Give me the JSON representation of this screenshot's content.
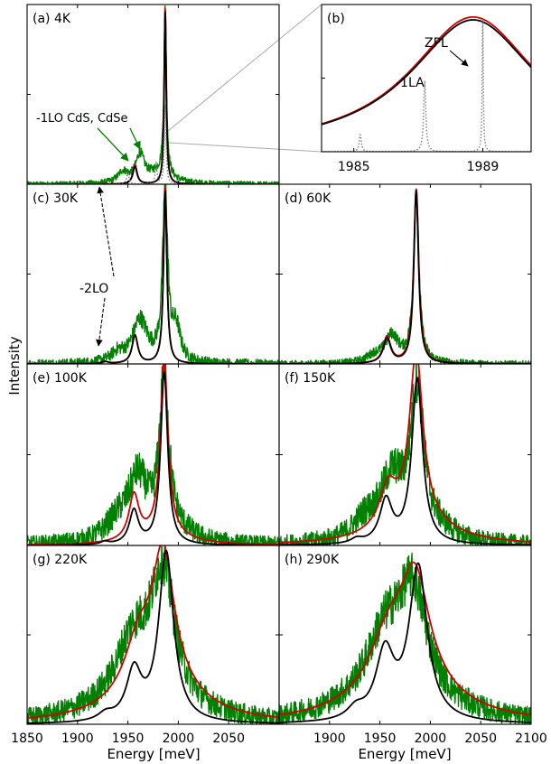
{
  "figure": {
    "ylabel": "Intensity",
    "xlabel_left": "Energy [meV]",
    "xlabel_right": "Energy [meV]"
  },
  "chart_data": [
    {
      "id": "a",
      "type": "line",
      "title": "(a)  4K",
      "xlim": [
        1850,
        2100
      ],
      "ylim": [
        0,
        1
      ],
      "annotations": [
        {
          "text": "-1LO CdS, CdSe"
        }
      ],
      "series": [
        {
          "color": "#d40000",
          "peaks": [
            {
              "x": 1987,
              "amp": 1.0,
              "w": 1.2
            },
            {
              "x": 1957,
              "amp": 0.11,
              "w": 2.5
            }
          ]
        },
        {
          "color": "#000000",
          "peaks": [
            {
              "x": 1987,
              "amp": 0.98,
              "w": 1.2
            },
            {
              "x": 1957,
              "amp": 0.1,
              "w": 2.5
            }
          ]
        },
        {
          "color": "#808080",
          "dotted": true,
          "peaks": [
            {
              "x": 1987,
              "amp": 0.45,
              "w": 1.0
            },
            {
              "x": 1978,
              "amp": 0.12,
              "w": 1.0
            },
            {
              "x": 1950,
              "amp": 0.06,
              "w": 1.5
            }
          ]
        },
        {
          "color": "#008000",
          "noise": 0.012,
          "peaks": [
            {
              "x": 1987,
              "amp": 0.96,
              "w": 1.5
            },
            {
              "x": 1962,
              "amp": 0.15,
              "w": 5
            },
            {
              "x": 1945,
              "amp": 0.06,
              "w": 6
            },
            {
              "x": 1980,
              "amp": 0.06,
              "w": 15
            }
          ]
        }
      ]
    },
    {
      "id": "b",
      "type": "line",
      "title": "(b)",
      "xlim": [
        1984,
        1990.5
      ],
      "ylim": [
        0,
        1
      ],
      "xticks": [
        1985,
        1989
      ],
      "annotations": [
        {
          "text": "ZPL"
        },
        {
          "text": "-1LA"
        }
      ],
      "series": [
        {
          "color": "#d40000",
          "peaks": [
            {
              "x": 1988.7,
              "amp": 0.95,
              "w": 2.4
            }
          ]
        },
        {
          "color": "#000000",
          "peaks": [
            {
              "x": 1988.7,
              "amp": 0.93,
              "w": 2.4
            }
          ]
        },
        {
          "color": "#808080",
          "dotted": true,
          "peaks": [
            {
              "x": 1989.0,
              "amp": 0.95,
              "w": 0.02
            },
            {
              "x": 1987.2,
              "amp": 0.5,
              "w": 0.04
            },
            {
              "x": 1985.2,
              "amp": 0.12,
              "w": 0.04
            }
          ]
        }
      ]
    },
    {
      "id": "c",
      "type": "line",
      "title": "(c)  30K",
      "xlim": [
        1850,
        2100
      ],
      "ylim": [
        0,
        1
      ],
      "annotations": [
        {
          "text": "-2LO"
        }
      ],
      "series": [
        {
          "color": "#d40000",
          "peaks": [
            {
              "x": 1987,
              "amp": 1.0,
              "w": 2.0
            },
            {
              "x": 1957,
              "amp": 0.16,
              "w": 3.5
            },
            {
              "x": 1927,
              "amp": 0.012,
              "w": 4
            }
          ]
        },
        {
          "color": "#000000",
          "peaks": [
            {
              "x": 1987,
              "amp": 0.98,
              "w": 2.0
            },
            {
              "x": 1957,
              "amp": 0.16,
              "w": 3.5
            },
            {
              "x": 1927,
              "amp": 0.012,
              "w": 4
            }
          ]
        },
        {
          "color": "#008000",
          "noise": 0.02,
          "peaks": [
            {
              "x": 1987,
              "amp": 0.98,
              "w": 3.0
            },
            {
              "x": 1962,
              "amp": 0.24,
              "w": 9
            },
            {
              "x": 1998,
              "amp": 0.18,
              "w": 5
            },
            {
              "x": 1940,
              "amp": 0.05,
              "w": 8
            }
          ]
        }
      ]
    },
    {
      "id": "d",
      "type": "line",
      "title": "(d)  60K",
      "xlim": [
        1850,
        2100
      ],
      "ylim": [
        0,
        1
      ],
      "series": [
        {
          "color": "#d40000",
          "peaks": [
            {
              "x": 1986,
              "amp": 0.99,
              "w": 3.0
            },
            {
              "x": 1957,
              "amp": 0.15,
              "w": 4.5
            }
          ]
        },
        {
          "color": "#000000",
          "peaks": [
            {
              "x": 1986,
              "amp": 0.98,
              "w": 2.8
            },
            {
              "x": 1957,
              "amp": 0.14,
              "w": 4.5
            }
          ]
        },
        {
          "color": "#008000",
          "noise": 0.015,
          "peaks": [
            {
              "x": 1986,
              "amp": 0.97,
              "w": 3.2
            },
            {
              "x": 1962,
              "amp": 0.15,
              "w": 8
            },
            {
              "x": 1945,
              "amp": 0.04,
              "w": 10
            }
          ]
        }
      ]
    },
    {
      "id": "e",
      "type": "line",
      "title": "(e)  100K",
      "xlim": [
        1850,
        2100
      ],
      "ylim": [
        0,
        1
      ],
      "series": [
        {
          "color": "#d40000",
          "peaks": [
            {
              "x": 1986,
              "amp": 0.98,
              "w": 4.5
            },
            {
              "x": 1956,
              "amp": 0.25,
              "w": 6
            },
            {
              "x": 1985,
              "amp": 0.06,
              "w": 28
            }
          ]
        },
        {
          "color": "#000000",
          "peaks": [
            {
              "x": 1986,
              "amp": 0.97,
              "w": 4.2
            },
            {
              "x": 1956,
              "amp": 0.19,
              "w": 5.5
            },
            {
              "x": 1927,
              "amp": 0.015,
              "w": 5
            }
          ]
        },
        {
          "color": "#008000",
          "noise": 0.035,
          "peaks": [
            {
              "x": 1986,
              "amp": 0.9,
              "w": 5.5
            },
            {
              "x": 1960,
              "amp": 0.34,
              "w": 12
            },
            {
              "x": 1940,
              "amp": 0.1,
              "w": 15
            },
            {
              "x": 2000,
              "amp": 0.05,
              "w": 20
            }
          ]
        }
      ]
    },
    {
      "id": "f",
      "type": "line",
      "title": "(f)  150K",
      "xlim": [
        1850,
        2100
      ],
      "ylim": [
        0,
        1
      ],
      "series": [
        {
          "color": "#d40000",
          "peaks": [
            {
              "x": 1986,
              "amp": 0.93,
              "w": 8
            },
            {
              "x": 1958,
              "amp": 0.22,
              "w": 10
            },
            {
              "x": 1985,
              "amp": 0.14,
              "w": 40
            }
          ]
        },
        {
          "color": "#000000",
          "peaks": [
            {
              "x": 1987,
              "amp": 0.93,
              "w": 6.5
            },
            {
              "x": 1956,
              "amp": 0.24,
              "w": 7.5
            },
            {
              "x": 1927,
              "amp": 0.025,
              "w": 7
            }
          ]
        },
        {
          "color": "#008000",
          "noise": 0.035,
          "peaks": [
            {
              "x": 1987,
              "amp": 0.82,
              "w": 8
            },
            {
              "x": 1962,
              "amp": 0.34,
              "w": 15
            },
            {
              "x": 1935,
              "amp": 0.1,
              "w": 15
            },
            {
              "x": 2010,
              "amp": 0.05,
              "w": 20
            }
          ]
        }
      ]
    },
    {
      "id": "g",
      "type": "line",
      "title": "(g)  220K",
      "xlim": [
        1850,
        2100
      ],
      "ylim": [
        0,
        1
      ],
      "series": [
        {
          "color": "#d40000",
          "peaks": [
            {
              "x": 1985,
              "amp": 0.72,
              "w": 13
            },
            {
              "x": 1960,
              "amp": 0.25,
              "w": 16
            },
            {
              "x": 1980,
              "amp": 0.25,
              "w": 42
            }
          ]
        },
        {
          "color": "#000000",
          "peaks": [
            {
              "x": 1988,
              "amp": 0.97,
              "w": 9
            },
            {
              "x": 1956,
              "amp": 0.28,
              "w": 9
            },
            {
              "x": 1928,
              "amp": 0.04,
              "w": 9
            }
          ]
        },
        {
          "color": "#008000",
          "noise": 0.035,
          "peaks": [
            {
              "x": 1985,
              "amp": 0.7,
              "w": 14
            },
            {
              "x": 1955,
              "amp": 0.3,
              "w": 20
            },
            {
              "x": 1965,
              "amp": 0.17,
              "w": 45
            }
          ]
        }
      ]
    },
    {
      "id": "h",
      "type": "line",
      "title": "(h)  290K",
      "xlim": [
        1850,
        2100
      ],
      "ylim": [
        0,
        1
      ],
      "series": [
        {
          "color": "#d40000",
          "peaks": [
            {
              "x": 1985,
              "amp": 0.55,
              "w": 17
            },
            {
              "x": 1958,
              "amp": 0.25,
              "w": 22
            },
            {
              "x": 1975,
              "amp": 0.28,
              "w": 48
            }
          ]
        },
        {
          "color": "#000000",
          "peaks": [
            {
              "x": 1988,
              "amp": 0.88,
              "w": 11
            },
            {
              "x": 1955,
              "amp": 0.38,
              "w": 11
            },
            {
              "x": 1926,
              "amp": 0.06,
              "w": 10
            }
          ]
        },
        {
          "color": "#008000",
          "noise": 0.035,
          "peaks": [
            {
              "x": 1983,
              "amp": 0.55,
              "w": 17
            },
            {
              "x": 1955,
              "amp": 0.3,
              "w": 22
            },
            {
              "x": 1965,
              "amp": 0.2,
              "w": 50
            }
          ]
        }
      ]
    }
  ],
  "axes": {
    "left_ticks": [
      "1850",
      "1900",
      "1950",
      "2000",
      "2050"
    ],
    "left_tick_values": [
      1850,
      1900,
      1950,
      2000,
      2050
    ],
    "right_ticks": [
      "1900",
      "1950",
      "2000",
      "2050",
      "2100"
    ],
    "right_tick_values": [
      1900,
      1950,
      2000,
      2050,
      2100
    ],
    "inset_ticks": [
      "1985",
      "1989"
    ]
  }
}
